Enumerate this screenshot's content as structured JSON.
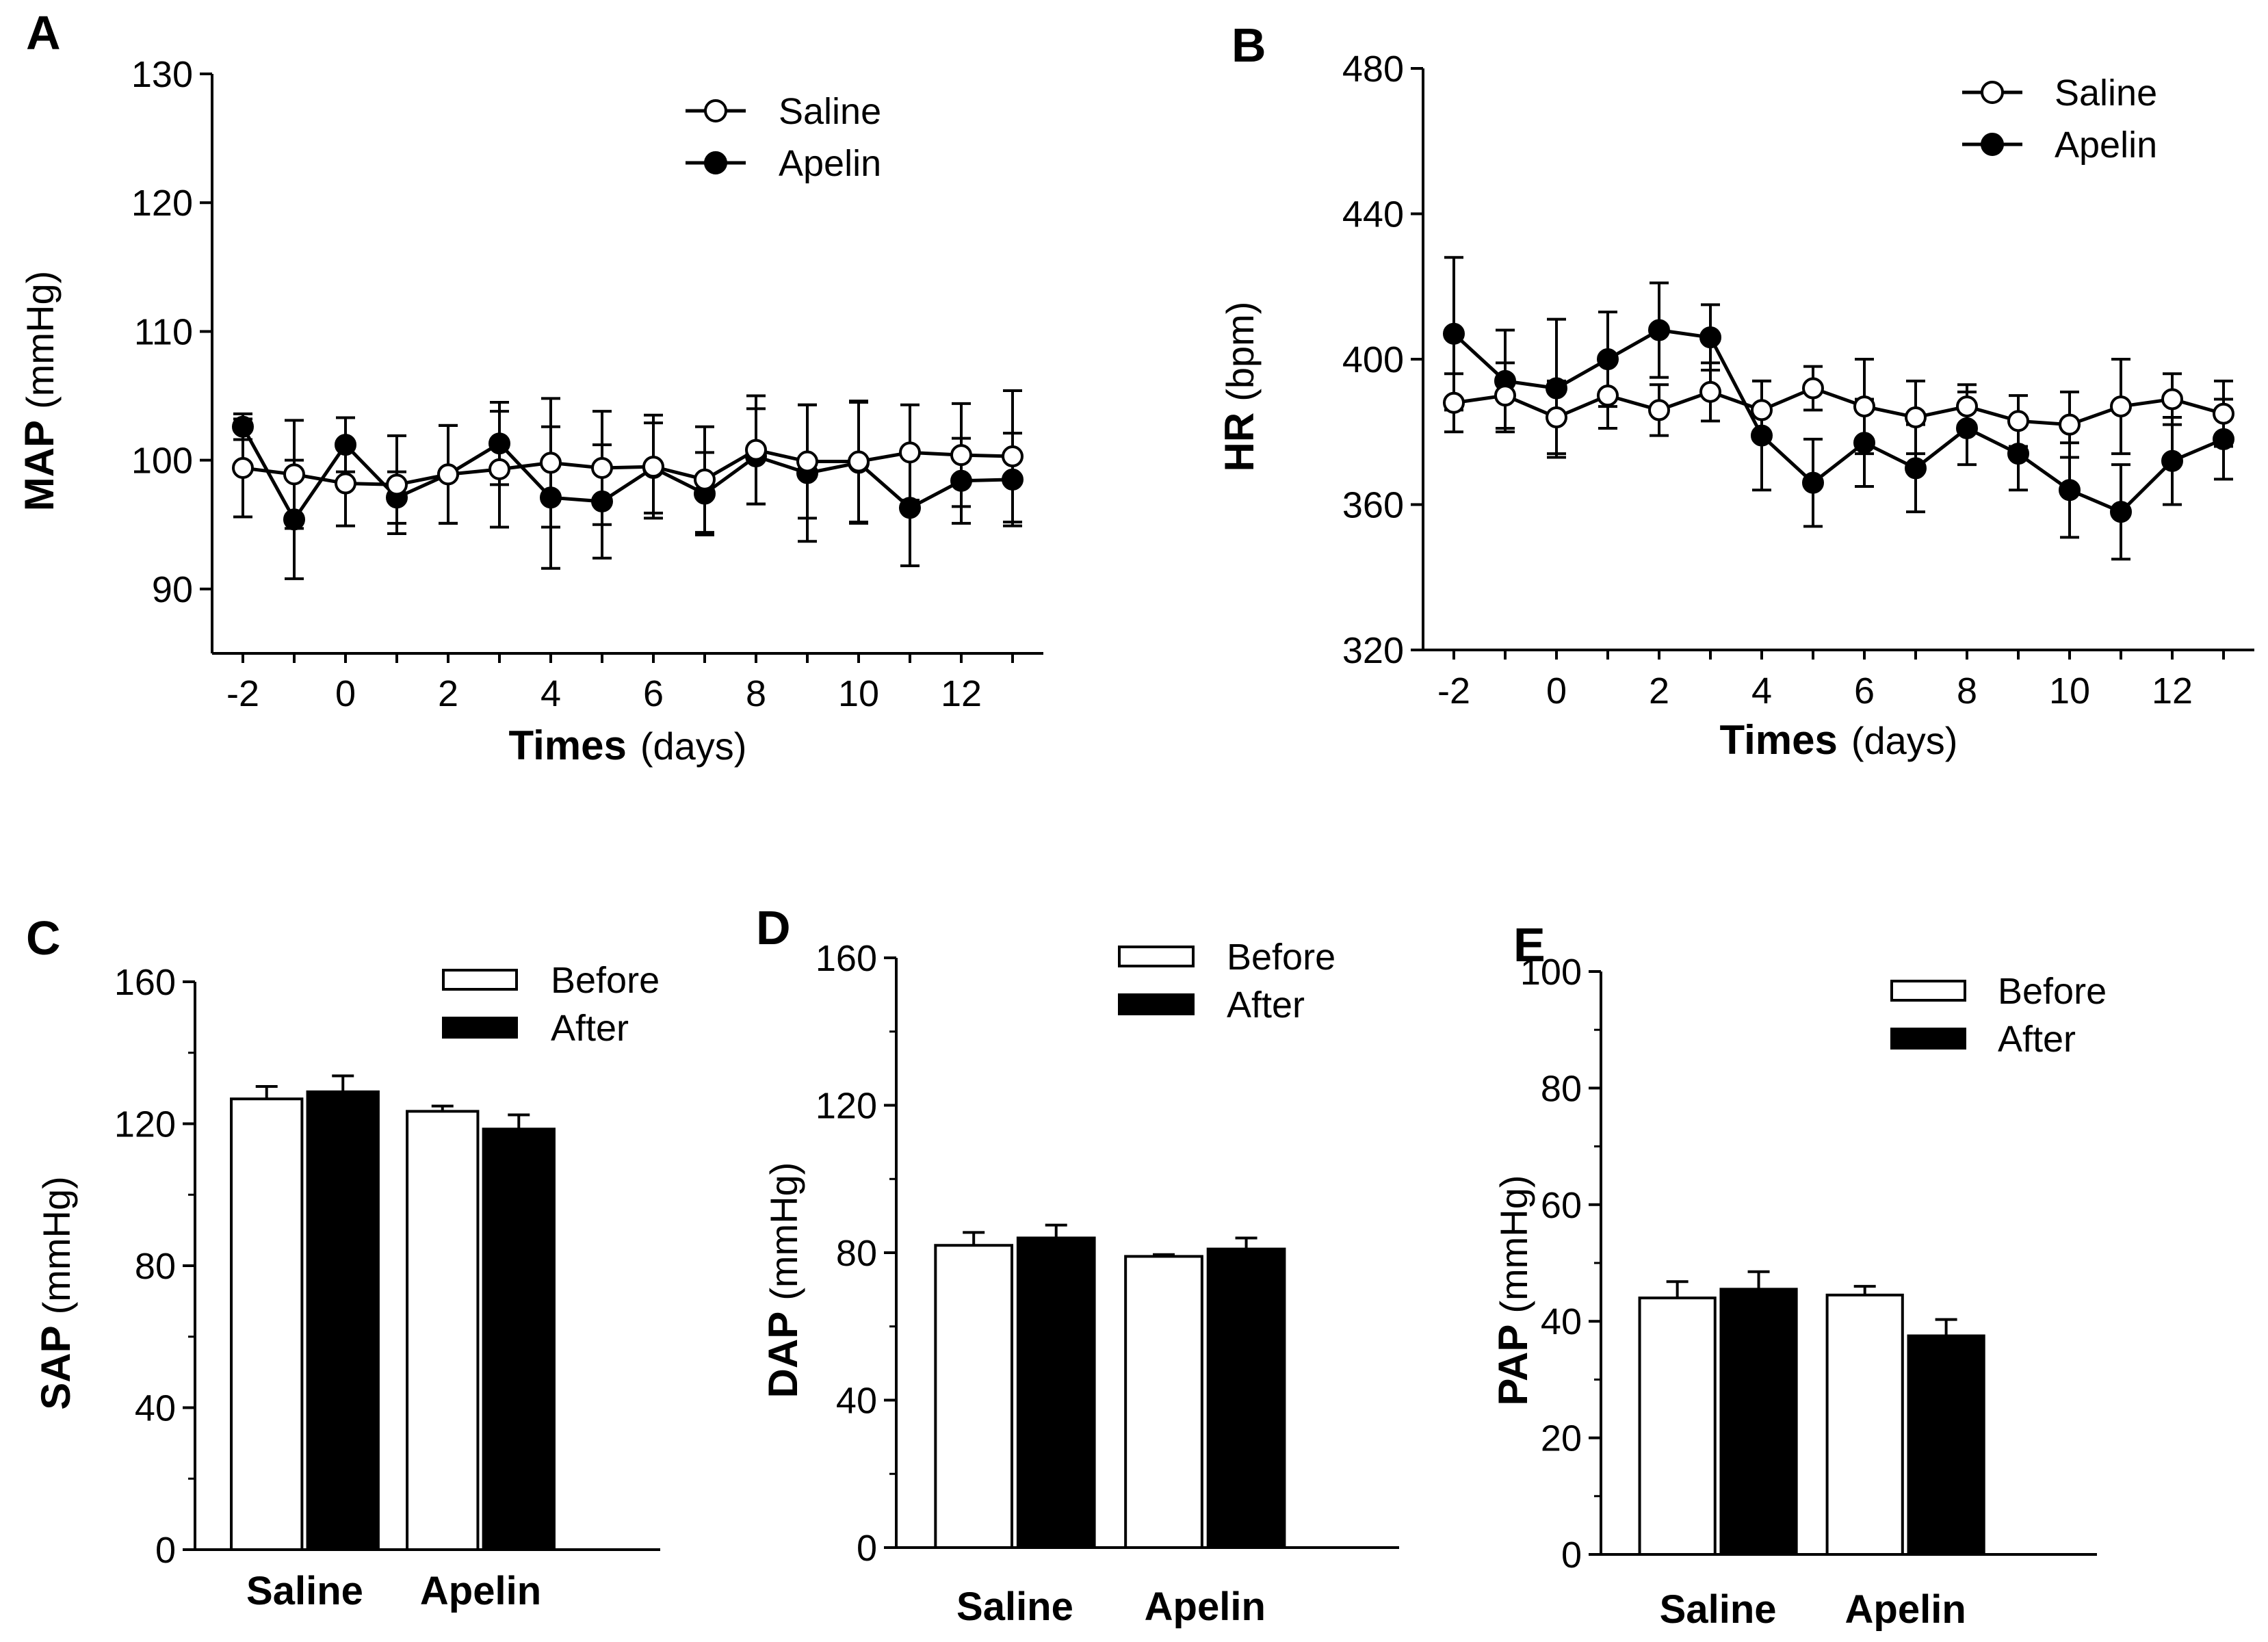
{
  "colors": {
    "ink": "#000000",
    "paper": "#ffffff"
  },
  "chart_data": [
    {
      "panel": "A",
      "type": "line",
      "ylabel_bold": "MAP",
      "ylabel_unit": "(mmHg)",
      "xlabel_bold": "Times",
      "xlabel_unit": "(days)",
      "x": [
        -2,
        -1,
        0,
        1,
        2,
        3,
        4,
        5,
        6,
        7,
        8,
        9,
        10,
        11,
        12,
        13
      ],
      "xlim": [
        -2.6,
        13.6
      ],
      "ylim": [
        85,
        130
      ],
      "yticks": [
        90,
        100,
        110,
        120,
        130
      ],
      "xticks": [
        -2,
        0,
        2,
        4,
        6,
        8,
        10,
        12
      ],
      "legend": [
        "Saline",
        "Apelin"
      ],
      "series": [
        {
          "name": "Saline",
          "marker": "open-circle",
          "values": [
            99.4,
            98.9,
            98.2,
            98.1,
            98.9,
            99.3,
            99.8,
            99.4,
            99.5,
            98.5,
            100.8,
            99.9,
            99.9,
            100.6,
            100.4,
            100.3
          ],
          "errors": [
            3.8,
            4.2,
            3.3,
            3.8,
            3.8,
            4.5,
            5.0,
            4.4,
            4.0,
            4.1,
            4.2,
            4.4,
            4.7,
            3.7,
            4.0,
            5.1
          ]
        },
        {
          "name": "Apelin",
          "marker": "filled-circle",
          "values": [
            102.6,
            95.4,
            101.2,
            97.1,
            98.9,
            101.3,
            97.1,
            96.8,
            99.4,
            97.4,
            100.3,
            99.0,
            99.8,
            96.3,
            98.4,
            98.5
          ],
          "errors": [
            1.0,
            4.6,
            2.1,
            2.0,
            3.8,
            3.2,
            5.5,
            4.4,
            3.5,
            3.2,
            3.7,
            5.3,
            4.7,
            4.5,
            3.3,
            3.6
          ]
        }
      ]
    },
    {
      "panel": "B",
      "type": "line",
      "ylabel_bold": "HR",
      "ylabel_unit": "(bpm)",
      "xlabel_bold": "Times",
      "xlabel_unit": "(days)",
      "x": [
        -2,
        -1,
        0,
        1,
        2,
        3,
        4,
        5,
        6,
        7,
        8,
        9,
        10,
        11,
        12,
        13
      ],
      "xlim": [
        -2.6,
        13.6
      ],
      "ylim": [
        320,
        480
      ],
      "yticks": [
        320,
        360,
        400,
        440,
        480
      ],
      "xticks": [
        -2,
        0,
        2,
        4,
        6,
        8,
        10,
        12
      ],
      "legend": [
        "Saline",
        "Apelin"
      ],
      "series": [
        {
          "name": "Saline",
          "marker": "open-circle",
          "values": [
            388,
            390,
            384,
            390,
            386,
            391,
            386,
            392,
            387,
            384,
            387,
            383,
            382,
            387,
            389,
            385
          ],
          "errors": [
            8,
            9,
            10,
            9,
            7,
            8,
            8,
            6,
            13,
            10,
            6,
            7,
            9,
            13,
            7,
            9
          ]
        },
        {
          "name": "Apelin",
          "marker": "filled-circle",
          "values": [
            407,
            394,
            392,
            400,
            408,
            406,
            379,
            366,
            377,
            370,
            381,
            374,
            364,
            358,
            372,
            378
          ],
          "errors": [
            21,
            14,
            19,
            13,
            13,
            9,
            15,
            12,
            12,
            12,
            10,
            10,
            13,
            13,
            12,
            11
          ]
        }
      ]
    },
    {
      "panel": "C",
      "type": "bar",
      "ylabel_bold": "SAP",
      "ylabel_unit": "(mmHg)",
      "categories": [
        "Saline",
        "Apelin"
      ],
      "ylim": [
        0,
        160
      ],
      "yticks": [
        0,
        40,
        80,
        120,
        160
      ],
      "legend": [
        "Before",
        "After"
      ],
      "series": [
        {
          "name": "Before",
          "fill": "white",
          "values": [
            127,
            123.5
          ],
          "errors": [
            3.5,
            1.5
          ]
        },
        {
          "name": "After",
          "fill": "black",
          "values": [
            129,
            118.5
          ],
          "errors": [
            4.5,
            4
          ]
        }
      ]
    },
    {
      "panel": "D",
      "type": "bar",
      "ylabel_bold": "DAP",
      "ylabel_unit": "(mmHg)",
      "categories": [
        "Saline",
        "Apelin"
      ],
      "ylim": [
        0,
        160
      ],
      "yticks": [
        0,
        40,
        80,
        120,
        160
      ],
      "legend": [
        "Before",
        "After"
      ],
      "series": [
        {
          "name": "Before",
          "fill": "white",
          "values": [
            82,
            79
          ],
          "errors": [
            3.5,
            0.5
          ]
        },
        {
          "name": "After",
          "fill": "black",
          "values": [
            84,
            81
          ],
          "errors": [
            3.5,
            3
          ]
        }
      ]
    },
    {
      "panel": "E",
      "type": "bar",
      "ylabel_bold": "PAP",
      "ylabel_unit": "(mmHg)",
      "categories": [
        "Saline",
        "Apelin"
      ],
      "ylim": [
        0,
        100
      ],
      "yticks": [
        0,
        20,
        40,
        60,
        80,
        100
      ],
      "legend": [
        "Before",
        "After"
      ],
      "series": [
        {
          "name": "Before",
          "fill": "white",
          "values": [
            44,
            44.5
          ],
          "errors": [
            2.8,
            1.5
          ]
        },
        {
          "name": "After",
          "fill": "black",
          "values": [
            45.5,
            37.5
          ],
          "errors": [
            3,
            2.8
          ]
        }
      ]
    }
  ]
}
